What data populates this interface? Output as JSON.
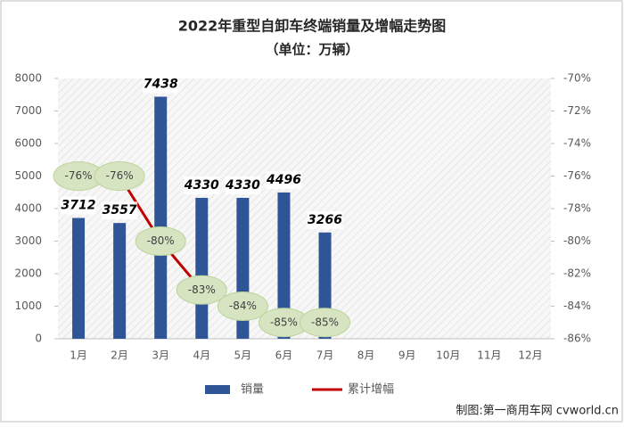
{
  "chart_data": {
    "type": "bar",
    "title": "2022年重型自卸车终端销量及增幅走势图",
    "subtitle": "（单位：万辆）",
    "categories": [
      "1月",
      "2月",
      "3月",
      "4月",
      "5月",
      "6月",
      "7月",
      "8月",
      "9月",
      "10月",
      "11月",
      "12月"
    ],
    "series": [
      {
        "name": "销量",
        "type": "bar",
        "color": "#2f5597",
        "values": [
          3712,
          3557,
          7438,
          4330,
          4330,
          4496,
          3266,
          null,
          null,
          null,
          null,
          null
        ]
      },
      {
        "name": "累计增幅",
        "type": "line",
        "axis": "y2",
        "color": "#c00000",
        "values": [
          -76,
          -76,
          -80,
          -83,
          -84,
          -85,
          -85,
          null,
          null,
          null,
          null,
          null
        ],
        "value_labels": [
          "-76%",
          "-76%",
          "-80%",
          "-83%",
          "-84%",
          "-85%",
          "-85%",
          null,
          null,
          null,
          null,
          null
        ]
      }
    ],
    "ylim": [
      0,
      8000
    ],
    "yticks": [
      0,
      1000,
      2000,
      3000,
      4000,
      5000,
      6000,
      7000,
      8000
    ],
    "y2lim": [
      -86,
      -70
    ],
    "y2ticks": [
      {
        "value": -86,
        "label": "-86%"
      },
      {
        "value": -84,
        "label": "-84%"
      },
      {
        "value": -82,
        "label": "-82%"
      },
      {
        "value": -80,
        "label": "-80%"
      },
      {
        "value": -78,
        "label": "-78%"
      },
      {
        "value": -76,
        "label": "-76%"
      },
      {
        "value": -74,
        "label": "-74%"
      },
      {
        "value": -72,
        "label": "-72%"
      },
      {
        "value": -70,
        "label": "-70%"
      }
    ],
    "legend": "bottom",
    "source": "制图:第一商用车网 cvworld.cn"
  }
}
